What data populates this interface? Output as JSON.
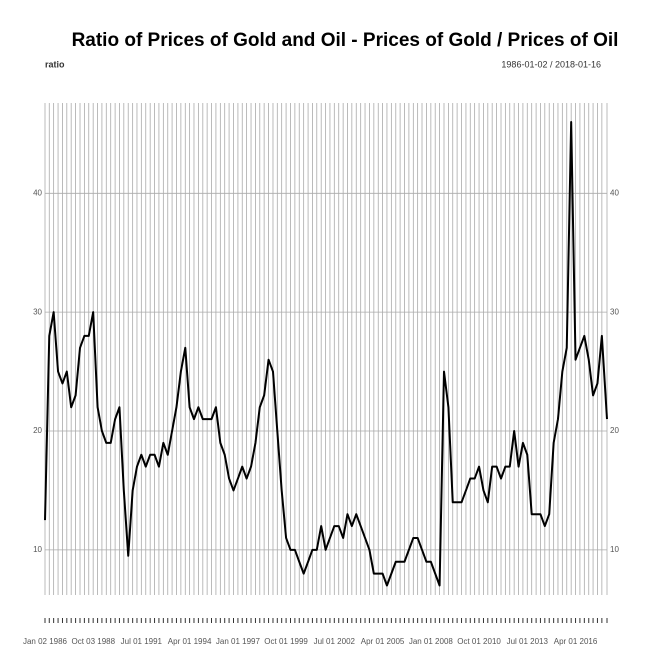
{
  "chart_data": {
    "type": "line",
    "title": "Ratio of Prices of Gold and Oil - Prices of Gold / Prices of Oil",
    "series_label": "ratio",
    "date_range": "1986-01-02 / 2018-01-16",
    "x": [
      "1986-01-02",
      "1986-04-01",
      "1986-07-01",
      "1986-10-01",
      "1987-01-01",
      "1987-04-01",
      "1987-07-01",
      "1987-10-01",
      "1988-01-01",
      "1988-04-01",
      "1988-07-01",
      "1988-10-01",
      "1989-01-01",
      "1989-04-01",
      "1989-07-01",
      "1989-10-01",
      "1990-01-01",
      "1990-04-01",
      "1990-07-01",
      "1990-10-01",
      "1991-01-01",
      "1991-04-01",
      "1991-07-01",
      "1991-10-01",
      "1992-01-01",
      "1992-04-01",
      "1992-07-01",
      "1992-10-01",
      "1993-01-01",
      "1993-04-01",
      "1993-07-01",
      "1993-10-01",
      "1994-01-01",
      "1994-04-01",
      "1994-07-01",
      "1994-10-01",
      "1995-01-01",
      "1995-04-01",
      "1995-07-01",
      "1995-10-01",
      "1996-01-01",
      "1996-04-01",
      "1996-07-01",
      "1996-10-01",
      "1997-01-01",
      "1997-04-01",
      "1997-07-01",
      "1997-10-01",
      "1998-01-01",
      "1998-04-01",
      "1998-07-01",
      "1998-10-01",
      "1999-01-01",
      "1999-04-01",
      "1999-07-01",
      "1999-10-01",
      "2000-01-01",
      "2000-04-01",
      "2000-07-01",
      "2000-10-01",
      "2001-01-01",
      "2001-04-01",
      "2001-07-01",
      "2001-10-01",
      "2002-01-01",
      "2002-04-01",
      "2002-07-01",
      "2002-10-01",
      "2003-01-01",
      "2003-04-01",
      "2003-07-01",
      "2003-10-01",
      "2004-01-01",
      "2004-04-01",
      "2004-07-01",
      "2004-10-01",
      "2005-01-01",
      "2005-04-01",
      "2005-07-01",
      "2005-10-01",
      "2006-01-01",
      "2006-04-01",
      "2006-07-01",
      "2006-10-01",
      "2007-01-01",
      "2007-04-01",
      "2007-07-01",
      "2007-10-01",
      "2008-01-01",
      "2008-04-01",
      "2008-07-01",
      "2008-10-01",
      "2009-01-01",
      "2009-04-01",
      "2009-07-01",
      "2009-10-01",
      "2010-01-01",
      "2010-04-01",
      "2010-07-01",
      "2010-10-01",
      "2011-01-01",
      "2011-04-01",
      "2011-07-01",
      "2011-10-01",
      "2012-01-01",
      "2012-04-01",
      "2012-07-01",
      "2012-10-01",
      "2013-01-01",
      "2013-04-01",
      "2013-07-01",
      "2013-10-01",
      "2014-01-01",
      "2014-04-01",
      "2014-07-01",
      "2014-10-01",
      "2015-01-01",
      "2015-04-01",
      "2015-07-01",
      "2015-10-01",
      "2016-01-01",
      "2016-04-01",
      "2016-07-01",
      "2016-10-01",
      "2017-01-01",
      "2017-04-01",
      "2017-07-01",
      "2017-10-01",
      "2018-01-16"
    ],
    "series": [
      {
        "name": "ratio",
        "color": "#000000",
        "values": [
          12.5,
          28,
          30,
          25,
          24,
          25,
          22,
          23,
          27,
          28,
          28,
          30,
          22,
          20,
          19,
          19,
          21,
          22,
          15,
          9.5,
          15,
          17,
          18,
          17,
          18,
          18,
          17,
          19,
          18,
          20,
          22,
          25,
          27,
          22,
          21,
          22,
          21,
          21,
          21,
          22,
          19,
          18,
          16,
          15,
          16,
          17,
          16,
          17,
          19,
          22,
          23,
          26,
          25,
          20,
          15,
          11,
          10,
          10,
          9,
          8,
          9,
          10,
          10,
          12,
          10,
          11,
          12,
          12,
          11,
          13,
          12,
          13,
          12,
          11,
          10,
          8,
          8,
          8,
          7,
          8,
          9,
          9,
          9,
          10,
          11,
          11,
          10,
          9,
          9,
          8,
          7,
          25,
          22,
          14,
          14,
          14,
          15,
          16,
          16,
          17,
          15,
          14,
          17,
          17,
          16,
          17,
          17,
          20,
          17,
          19,
          18,
          13,
          13,
          13,
          12,
          13,
          19,
          21,
          25,
          27,
          46,
          26,
          27,
          28,
          26,
          23,
          24,
          28,
          21
        ]
      }
    ],
    "xlim": [
      "1986-01-02",
      "2018-01-16"
    ],
    "xticks": [
      {
        "value": "1986-01-02",
        "label": "Jan 02 1986"
      },
      {
        "value": "1988-10-03",
        "label": "Oct 03 1988"
      },
      {
        "value": "1991-07-01",
        "label": "Jul 01 1991"
      },
      {
        "value": "1994-04-01",
        "label": "Apr 01 1994"
      },
      {
        "value": "1997-01-01",
        "label": "Jan 01 1997"
      },
      {
        "value": "1999-10-01",
        "label": "Oct 01 1999"
      },
      {
        "value": "2002-07-01",
        "label": "Jul 01 2002"
      },
      {
        "value": "2005-04-01",
        "label": "Apr 01 2005"
      },
      {
        "value": "2008-01-01",
        "label": "Jan 01 2008"
      },
      {
        "value": "2010-10-01",
        "label": "Oct 01 2010"
      },
      {
        "value": "2013-07-01",
        "label": "Jul 01 2013"
      },
      {
        "value": "2016-04-01",
        "label": "Apr 01 2016"
      }
    ],
    "ylim": [
      6.2,
      47.6
    ],
    "yticks": [
      10,
      20,
      30,
      40
    ],
    "grid": true
  }
}
